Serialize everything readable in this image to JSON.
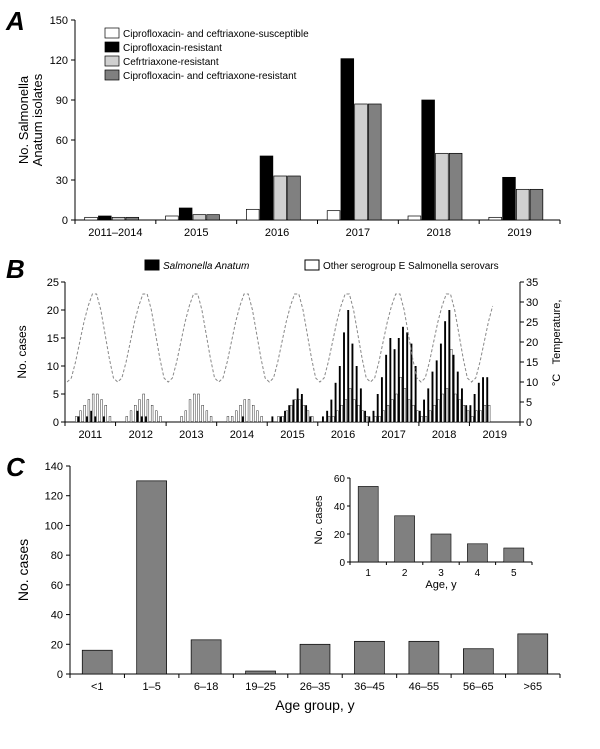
{
  "panelA": {
    "type": "bar",
    "title_letter": "A",
    "ylabel_line1": "No. Salmonella",
    "ylabel_line2": "Anatum isolates",
    "categories": [
      "2011–2014",
      "2015",
      "2016",
      "2017",
      "2018",
      "2019"
    ],
    "legend": [
      "Ciprofloxacin- and ceftriaxone-susceptible",
      "Ciprofloxacin-resistant",
      "Cefrtriaxone-resistant",
      "Ciprofloxacin- and ceftriaxone-resistant"
    ],
    "series_colors": [
      "#ffffff",
      "#000000",
      "#d0d0d0",
      "#808080"
    ],
    "series_border": "#000000",
    "values": {
      "2011–2014": [
        2,
        3,
        2,
        2
      ],
      "2015": [
        3,
        9,
        4,
        4
      ],
      "2016": [
        8,
        48,
        33,
        33
      ],
      "2017": [
        7,
        121,
        87,
        87
      ],
      "2018": [
        3,
        90,
        50,
        50
      ],
      "2019": [
        2,
        32,
        23,
        23
      ]
    },
    "ylim": [
      0,
      150
    ],
    "ytick_step": 30,
    "plot_bg": "#ffffff"
  },
  "panelB": {
    "type": "bar+line",
    "title_letter": "B",
    "ylabel_left": "No. cases",
    "ylabel_right_line1": "Temperature,",
    "ylabel_right_line2": "°C",
    "x_years": [
      "2011",
      "2012",
      "2013",
      "2014",
      "2015",
      "2016",
      "2017",
      "2018",
      "2019"
    ],
    "legend": [
      "Salmonella Anatum",
      "Other serogroup E Salmonella serovars"
    ],
    "series_colors": [
      "#000000",
      "#ffffff"
    ],
    "series_border": "#000000",
    "ylim_left": [
      0,
      25
    ],
    "ytick_left_step": 5,
    "ylim_right": [
      0,
      35
    ],
    "ytick_right_step": 5,
    "months_per_year": 12,
    "anatum": [
      0,
      0,
      0,
      1,
      0,
      1,
      2,
      1,
      0,
      1,
      0,
      0,
      0,
      0,
      0,
      0,
      0,
      2,
      1,
      1,
      0,
      0,
      0,
      0,
      0,
      0,
      0,
      0,
      0,
      0,
      0,
      0,
      0,
      0,
      0,
      0,
      0,
      0,
      0,
      0,
      0,
      0,
      1,
      0,
      0,
      0,
      0,
      0,
      0,
      1,
      0,
      1,
      2,
      3,
      4,
      6,
      5,
      3,
      1,
      0,
      0,
      1,
      2,
      4,
      7,
      10,
      16,
      20,
      14,
      10,
      6,
      2,
      1,
      2,
      5,
      8,
      12,
      15,
      13,
      15,
      17,
      16,
      14,
      10,
      2,
      4,
      6,
      9,
      11,
      14,
      18,
      20,
      12,
      9,
      6,
      3,
      3,
      5,
      7,
      8,
      8,
      0,
      0,
      0,
      0,
      0,
      0,
      0
    ],
    "other": [
      0,
      0,
      1,
      2,
      3,
      4,
      5,
      5,
      4,
      3,
      1,
      0,
      0,
      0,
      1,
      2,
      3,
      4,
      5,
      4,
      3,
      2,
      1,
      0,
      0,
      0,
      0,
      1,
      2,
      4,
      5,
      5,
      3,
      2,
      1,
      0,
      0,
      0,
      1,
      1,
      2,
      3,
      4,
      4,
      3,
      2,
      1,
      0,
      0,
      0,
      1,
      1,
      2,
      3,
      4,
      4,
      3,
      2,
      1,
      0,
      0,
      0,
      1,
      1,
      2,
      3,
      4,
      6,
      4,
      3,
      2,
      1,
      0,
      1,
      1,
      2,
      3,
      4,
      5,
      8,
      6,
      4,
      3,
      2,
      1,
      1,
      2,
      3,
      4,
      5,
      6,
      13,
      5,
      4,
      3,
      2,
      1,
      2,
      2,
      3,
      3,
      0,
      0,
      0,
      0,
      0,
      0,
      0
    ],
    "temp": [
      10,
      11,
      15,
      20,
      25,
      29,
      32,
      32,
      28,
      22,
      16,
      11,
      10,
      11,
      15,
      20,
      25,
      29,
      32,
      32,
      28,
      22,
      16,
      11,
      10,
      11,
      15,
      20,
      25,
      29,
      32,
      32,
      28,
      22,
      16,
      11,
      10,
      11,
      15,
      20,
      25,
      29,
      32,
      32,
      28,
      22,
      16,
      11,
      10,
      11,
      15,
      20,
      25,
      29,
      32,
      32,
      28,
      22,
      16,
      11,
      10,
      11,
      15,
      20,
      25,
      29,
      32,
      32,
      28,
      22,
      16,
      11,
      10,
      11,
      15,
      20,
      25,
      29,
      32,
      32,
      28,
      22,
      16,
      11,
      10,
      11,
      15,
      20,
      25,
      29,
      32,
      32,
      28,
      22,
      16,
      11,
      10,
      11,
      15,
      20,
      25,
      29
    ],
    "temp_color": "#888888"
  },
  "panelC": {
    "type": "bar",
    "title_letter": "C",
    "xlabel": "Age group, y",
    "ylabel": "No. cases",
    "categories": [
      "<1",
      "1–5",
      "6–18",
      "19–25",
      "26–35",
      "36–45",
      "46–55",
      "56–65",
      ">65"
    ],
    "values": [
      16,
      130,
      23,
      2,
      20,
      22,
      22,
      17,
      27
    ],
    "bar_color": "#808080",
    "bar_border": "#000000",
    "ylim": [
      0,
      140
    ],
    "ytick_step": 20,
    "inset": {
      "xlabel": "Age, y",
      "ylabel": "No. cases",
      "categories": [
        "1",
        "2",
        "3",
        "4",
        "5"
      ],
      "values": [
        54,
        33,
        20,
        13,
        10
      ],
      "ylim": [
        0,
        60
      ],
      "ytick_step": 20,
      "bar_color": "#808080",
      "bar_border": "#000000"
    }
  }
}
